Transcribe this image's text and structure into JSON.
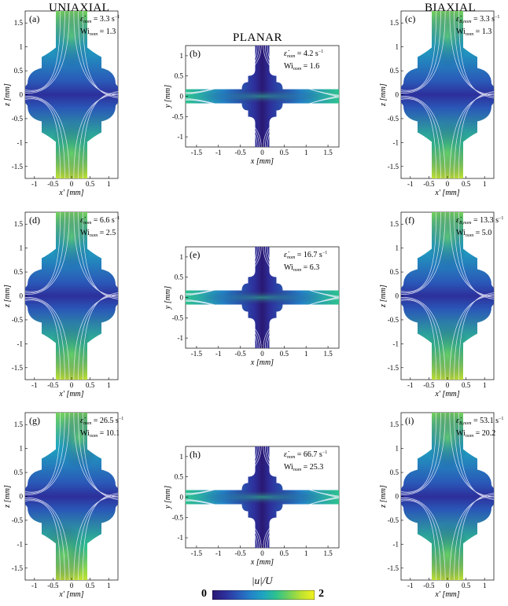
{
  "column_titles": {
    "uniaxial": "UNIAXIAL",
    "planar": "PLANAR",
    "biaxial": "BIAXIAL"
  },
  "colors": {
    "grid": "#1f3aa0",
    "streamline": "#f4f4ff"
  },
  "colormap": [
    "#2a1873",
    "#2d2f9b",
    "#2a58b8",
    "#2383c8",
    "#1ea6c0",
    "#2ec28e",
    "#73d15a",
    "#bfe230",
    "#f2f21f"
  ],
  "panels": [
    {
      "id": "a",
      "label": "(a)",
      "type": "uniaxial",
      "rate_symbol": "ε̇",
      "rate_sub": "nom",
      "rate": "= 3.3 s",
      "rate_exp": "−1",
      "wi_sub": "nom",
      "wi": "= 1.3",
      "xlabel": "x' [mm]",
      "ylabel": "z [mm]",
      "xticks": [
        "-1",
        "-0.5",
        "0",
        "0.5",
        "1"
      ],
      "yticks": [
        "1.5",
        "1",
        "0.5",
        "0",
        "-0.5",
        "-1",
        "-1.5"
      ],
      "intensity": 0.55,
      "asym": 0
    },
    {
      "id": "b",
      "label": "(b)",
      "type": "planar",
      "rate_symbol": "ε̇",
      "rate_sub": "nom",
      "rate": "= 4.2 s",
      "rate_exp": "−1",
      "wi_sub": "nom",
      "wi": "= 1.6",
      "xlabel": "x [mm]",
      "ylabel": "y [mm]",
      "xticks": [
        "-1.5",
        "-1",
        "-0.5",
        "0",
        "0.5",
        "1",
        "1.5"
      ],
      "yticks": [
        "1",
        "0.5",
        "0",
        "-0.5",
        "-1"
      ],
      "intensity": 0.6,
      "asym": 0
    },
    {
      "id": "c",
      "label": "(c)",
      "type": "biaxial",
      "rate_symbol": "ε̇",
      "rate_sub": "B,nom",
      "rate": "= 3.3 s",
      "rate_exp": "−1",
      "wi_sub": "nom",
      "wi": "= 1.3",
      "xlabel": "x' [mm]",
      "ylabel": "z [mm]",
      "xticks": [
        "-1",
        "-0.5",
        "0",
        "0.5",
        "1"
      ],
      "yticks": [
        "1.5",
        "1",
        "0.5",
        "0",
        "-0.5",
        "-1",
        "-1.5"
      ],
      "intensity": 0.55,
      "asym": 0
    },
    {
      "id": "d",
      "label": "(d)",
      "type": "uniaxial",
      "rate_symbol": "ε̇",
      "rate_sub": "nom",
      "rate": "= 6.6 s",
      "rate_exp": "−1",
      "wi_sub": "nom",
      "wi": "= 2.5",
      "xlabel": "x' [mm]",
      "ylabel": "z [mm]",
      "xticks": [
        "-1",
        "-0.5",
        "0",
        "0.5",
        "1"
      ],
      "yticks": [
        "1.5",
        "1",
        "0.5",
        "0",
        "-0.5",
        "-1",
        "-1.5"
      ],
      "intensity": 0.58,
      "asym": 0
    },
    {
      "id": "e",
      "label": "(e)",
      "type": "planar",
      "rate_symbol": "ε̇",
      "rate_sub": "nom",
      "rate": "= 16.7 s",
      "rate_exp": "−1",
      "wi_sub": "nom",
      "wi": "= 6.3",
      "xlabel": "x [mm]",
      "ylabel": "y [mm]",
      "xticks": [
        "-1.5",
        "-1",
        "-0.5",
        "0",
        "0.5",
        "1",
        "1.5"
      ],
      "yticks": [
        "1",
        "0.5",
        "0",
        "-0.5",
        "-1"
      ],
      "intensity": 0.62,
      "asym": 0
    },
    {
      "id": "f",
      "label": "(f)",
      "type": "biaxial",
      "rate_symbol": "ε̇",
      "rate_sub": "B,nom",
      "rate": "= 13.3 s",
      "rate_exp": "−1",
      "wi_sub": "nom",
      "wi": "= 5.0",
      "xlabel": "x' [mm]",
      "ylabel": "z [mm]",
      "xticks": [
        "-1",
        "-0.5",
        "0",
        "0.5",
        "1"
      ],
      "yticks": [
        "1.5",
        "1",
        "0.5",
        "0",
        "-0.5",
        "-1",
        "-1.5"
      ],
      "intensity": 0.58,
      "asym": 0
    },
    {
      "id": "g",
      "label": "(g)",
      "type": "uniaxial",
      "rate_symbol": "ε̇",
      "rate_sub": "nom",
      "rate": "= 26.5 s",
      "rate_exp": "−1",
      "wi_sub": "nom",
      "wi": "= 10.1",
      "xlabel": "x' [mm]",
      "ylabel": "z [mm]",
      "xticks": [
        "-1",
        "-0.5",
        "0",
        "0.5",
        "1"
      ],
      "yticks": [
        "1.5",
        "1",
        "0.5",
        "0",
        "-0.5",
        "-1",
        "-1.5"
      ],
      "intensity": 0.65,
      "asym": 1
    },
    {
      "id": "h",
      "label": "(h)",
      "type": "planar",
      "rate_symbol": "ε̇",
      "rate_sub": "nom",
      "rate": "= 66.7 s",
      "rate_exp": "−1",
      "wi_sub": "nom",
      "wi": "= 25.3",
      "xlabel": "x [mm]",
      "ylabel": "y [mm]",
      "xticks": [
        "-1.5",
        "-1",
        "-0.5",
        "0",
        "0.5",
        "1",
        "1.5"
      ],
      "yticks": [
        "1",
        "0.5",
        "0",
        "-0.5",
        "-1"
      ],
      "intensity": 0.68,
      "asym": 1
    },
    {
      "id": "i",
      "label": "(i)",
      "type": "biaxial",
      "rate_symbol": "ε̇",
      "rate_sub": "B,nom",
      "rate": "= 53.1 s",
      "rate_exp": "−1",
      "wi_sub": "nom",
      "wi": "= 20.2",
      "xlabel": "x' [mm]",
      "ylabel": "z [mm]",
      "xticks": [
        "-1",
        "-0.5",
        "0",
        "0.5",
        "1"
      ],
      "yticks": [
        "1.5",
        "1",
        "0.5",
        "0",
        "-0.5",
        "-1",
        "-1.5"
      ],
      "intensity": 0.66,
      "asym": 0
    }
  ],
  "colorbar": {
    "min_label": "0",
    "max_label": "2",
    "title": "|u|/U"
  }
}
